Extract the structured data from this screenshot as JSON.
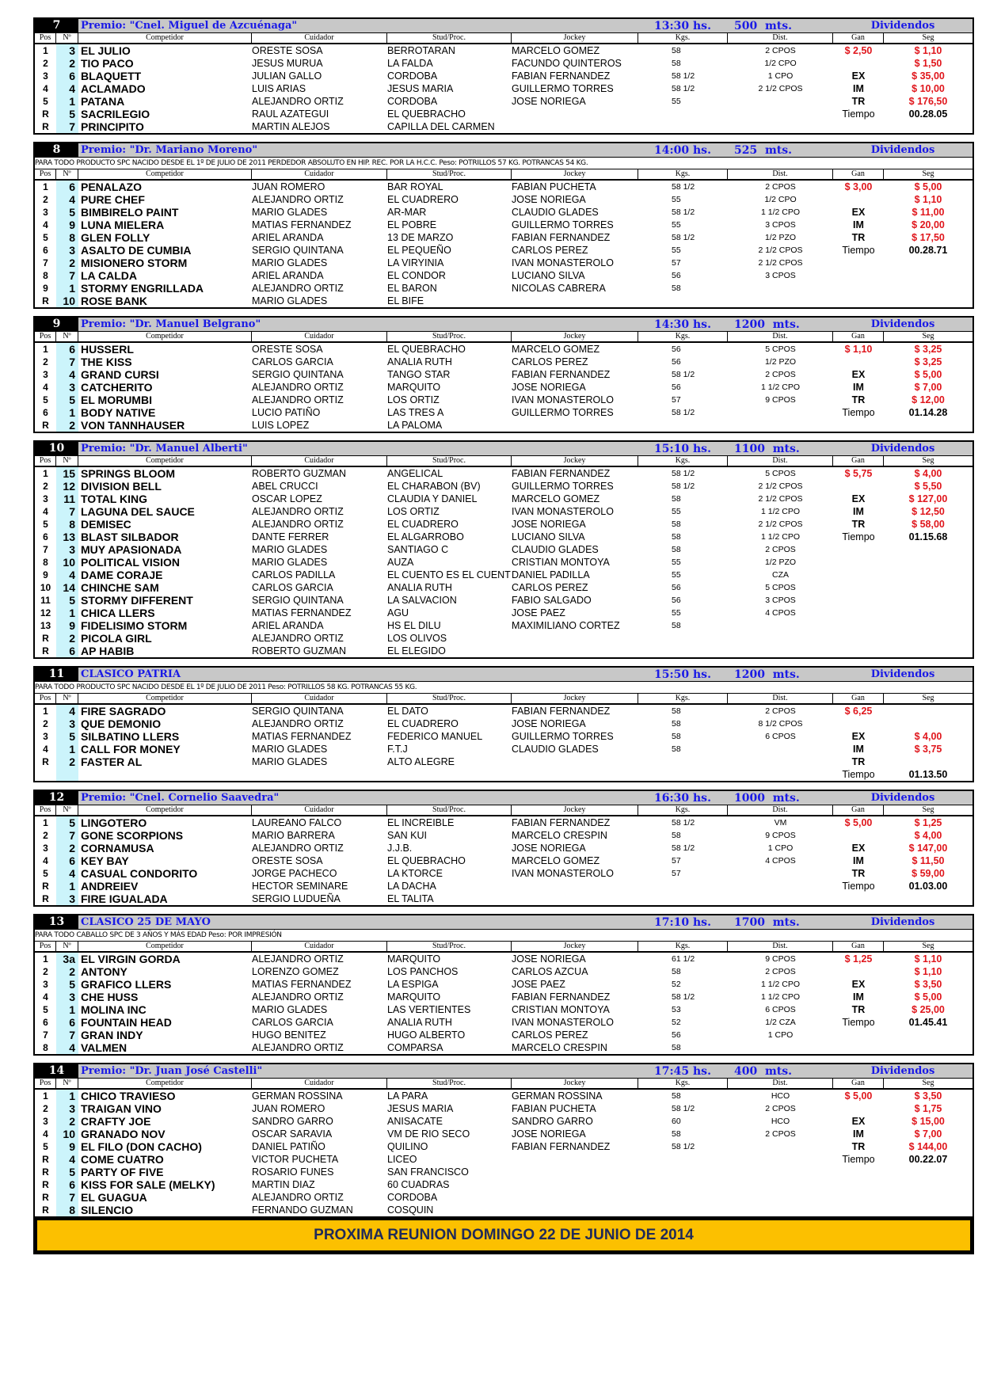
{
  "columns": {
    "pos": "Pos",
    "num": "Nº",
    "name": "Competidor",
    "cuid": "Cuidador",
    "stud": "Stud/Proc.",
    "jockey": "Jockey",
    "kgs": "Kgs.",
    "dist": "Dist.",
    "gan": "Gan",
    "seg": "Seg"
  },
  "dividends_label": "Dividendos",
  "colors": {
    "header_bg": "#c8c8c8",
    "title": "#1a1ae6",
    "money": "#e0161c",
    "number_col": "#ccf4fb",
    "banner": "#fcc000"
  },
  "races": [
    {
      "number": "7",
      "title": "Premio: \"Cnel. Miguel de Azcuénaga\"",
      "time": "13:30 hs.",
      "distance": "500  mts.",
      "note": "",
      "rows": [
        [
          "1",
          "3",
          "EL JULIO",
          "ORESTE SOSA",
          "BERROTARAN",
          "MARCELO GOMEZ",
          "58",
          "2 CPOS",
          "$ 2,50",
          "$ 1,10"
        ],
        [
          "2",
          "2",
          "TIO PACO",
          "JESUS MURUA",
          "LA FALDA",
          "FACUNDO QUINTEROS",
          "58",
          "1/2 CPO",
          "",
          "$ 1,50"
        ],
        [
          "3",
          "6",
          "BLAQUETT",
          "JULIAN GALLO",
          "CORDOBA",
          "FABIAN FERNANDEZ",
          "58 1/2",
          "1 CPO",
          "EX",
          "$ 35,00"
        ],
        [
          "4",
          "4",
          "ACLAMADO",
          "LUIS ARIAS",
          "JESUS MARIA",
          "GUILLERMO TORRES",
          "58 1/2",
          "2 1/2 CPOS",
          "IM",
          "$ 10,00"
        ],
        [
          "5",
          "1",
          "PATANA",
          "ALEJANDRO ORTIZ",
          "CORDOBA",
          "JOSE NORIEGA",
          "55",
          "",
          "TR",
          "$ 176,50"
        ],
        [
          "R",
          "5",
          "SACRILEGIO",
          "RAUL AZATEGUI",
          "EL QUEBRACHO",
          "",
          "",
          "",
          "Tiempo",
          "00.28.05"
        ],
        [
          "R",
          "7",
          "PRINCIPITO",
          "MARTIN ALEJOS",
          "CAPILLA DEL CARMEN",
          "",
          "",
          "",
          "",
          ""
        ]
      ]
    },
    {
      "number": "8",
      "title": "Premio: \"Dr. Mariano Moreno\"",
      "time": "14:00 hs.",
      "distance": "525  mts.",
      "note": "PARA TODO PRODUCTO SPC NACIDO DESDE EL 1º DE JULIO DE 2011 PERDEDOR ABSOLUTO EN HIP. REC. POR LA H.C.C. Peso: POTRILLOS 57 KG. POTRANCAS 54 KG.",
      "rows": [
        [
          "1",
          "6",
          "PENALAZO",
          "JUAN ROMERO",
          "BAR ROYAL",
          "FABIAN PUCHETA",
          "58 1/2",
          "2 CPOS",
          "$ 3,00",
          "$ 5,00"
        ],
        [
          "2",
          "4",
          "PURE CHEF",
          "ALEJANDRO ORTIZ",
          "EL CUADRERO",
          "JOSE NORIEGA",
          "55",
          "1/2 CPO",
          "",
          "$ 1,10"
        ],
        [
          "3",
          "5",
          "BIMBIRELO PAINT",
          "MARIO GLADES",
          "AR-MAR",
          "CLAUDIO GLADES",
          "58 1/2",
          "1 1/2 CPO",
          "EX",
          "$ 11,00"
        ],
        [
          "4",
          "9",
          "LUNA MIELERA",
          "MATIAS FERNANDEZ",
          "EL POBRE",
          "GUILLERMO TORRES",
          "55",
          "3 CPOS",
          "IM",
          "$ 20,00"
        ],
        [
          "5",
          "8",
          "GLEN FOLLY",
          "ARIEL ARANDA",
          "13 DE MARZO",
          "FABIAN FERNANDEZ",
          "58 1/2",
          "1/2 PZO",
          "TR",
          "$ 17,50"
        ],
        [
          "6",
          "3",
          "ASALTO DE CUMBIA",
          "SERGIO QUINTANA",
          "EL PEQUEÑO",
          "CARLOS PEREZ",
          "55",
          "2 1/2 CPOS",
          "Tiempo",
          "00.28.71"
        ],
        [
          "7",
          "2",
          "MISIONERO STORM",
          "MARIO GLADES",
          "LA VIRYINIA",
          "IVAN MONASTEROLO",
          "57",
          "2 1/2 CPOS",
          "",
          ""
        ],
        [
          "8",
          "7",
          "LA CALDA",
          "ARIEL ARANDA",
          "EL CONDOR",
          "LUCIANO SILVA",
          "56",
          "3 CPOS",
          "",
          ""
        ],
        [
          "9",
          "1",
          "STORMY ENGRILLADA",
          "ALEJANDRO ORTIZ",
          "EL BARON",
          "NICOLAS CABRERA",
          "58",
          "",
          "",
          ""
        ],
        [
          "R",
          "10",
          "ROSE BANK",
          "MARIO GLADES",
          "EL BIFE",
          "",
          "",
          "",
          "",
          ""
        ]
      ]
    },
    {
      "number": "9",
      "title": "Premio: \"Dr. Manuel Belgrano\"",
      "time": "14:30 hs.",
      "distance": "1200  mts.",
      "note": "",
      "rows": [
        [
          "1",
          "6",
          "HUSSERL",
          "ORESTE SOSA",
          "EL QUEBRACHO",
          "MARCELO GOMEZ",
          "56",
          "5 CPOS",
          "$ 1,10",
          "$ 3,25"
        ],
        [
          "2",
          "7",
          "THE KISS",
          "CARLOS GARCIA",
          "ANALIA RUTH",
          "CARLOS PEREZ",
          "56",
          "1/2 PZO",
          "",
          "$ 3,25"
        ],
        [
          "3",
          "4",
          "GRAND CURSI",
          "SERGIO QUINTANA",
          "TANGO STAR",
          "FABIAN FERNANDEZ",
          "58 1/2",
          "2 CPOS",
          "EX",
          "$ 5,00"
        ],
        [
          "4",
          "3",
          "CATCHERITO",
          "ALEJANDRO ORTIZ",
          "MARQUITO",
          "JOSE NORIEGA",
          "56",
          "1 1/2 CPO",
          "IM",
          "$ 7,00"
        ],
        [
          "5",
          "5",
          "EL MORUMBI",
          "ALEJANDRO ORTIZ",
          "LOS ORTIZ",
          "IVAN MONASTEROLO",
          "57",
          "9 CPOS",
          "TR",
          "$ 12,00"
        ],
        [
          "6",
          "1",
          "BODY NATIVE",
          "LUCIO PATIÑO",
          "LAS TRES A",
          "GUILLERMO TORRES",
          "58 1/2",
          "",
          "Tiempo",
          "01.14.28"
        ],
        [
          "R",
          "2",
          "VON TANNHAUSER",
          "LUIS LOPEZ",
          "LA PALOMA",
          "",
          "",
          "",
          "",
          ""
        ]
      ]
    },
    {
      "number": "10",
      "title": "Premio: \"Dr. Manuel Alberti\"",
      "time": "15:10 hs.",
      "distance": "1100  mts.",
      "note": "",
      "rows": [
        [
          "1",
          "15",
          "SPRINGS BLOOM",
          "ROBERTO GUZMAN",
          "ANGELICAL",
          "FABIAN FERNANDEZ",
          "58 1/2",
          "5 CPOS",
          "$ 5,75",
          "$ 4,00"
        ],
        [
          "2",
          "12",
          "DIVISION BELL",
          "ABEL CRUCCI",
          "EL CHARABON (BV)",
          "GUILLERMO TORRES",
          "58 1/2",
          "2 1/2 CPOS",
          "",
          "$ 5,50"
        ],
        [
          "3",
          "11",
          "TOTAL KING",
          "OSCAR LOPEZ",
          "CLAUDIA Y DANIEL",
          "MARCELO GOMEZ",
          "58",
          "2 1/2 CPOS",
          "EX",
          "$ 127,00"
        ],
        [
          "4",
          "7",
          "LAGUNA DEL SAUCE",
          "ALEJANDRO ORTIZ",
          "LOS ORTIZ",
          "IVAN MONASTEROLO",
          "55",
          "1 1/2 CPO",
          "IM",
          "$ 12,50"
        ],
        [
          "5",
          "8",
          "DEMISEC",
          "ALEJANDRO ORTIZ",
          "EL CUADRERO",
          "JOSE NORIEGA",
          "58",
          "2 1/2 CPOS",
          "TR",
          "$ 58,00"
        ],
        [
          "6",
          "13",
          "BLAST SILBADOR",
          "DANTE FERRER",
          "EL ALGARROBO",
          "LUCIANO SILVA",
          "58",
          "1 1/2 CPO",
          "Tiempo",
          "01.15.68"
        ],
        [
          "7",
          "3",
          "MUY APASIONADA",
          "MARIO GLADES",
          "SANTIAGO C",
          "CLAUDIO GLADES",
          "58",
          "2 CPOS",
          "",
          ""
        ],
        [
          "8",
          "10",
          "POLITICAL VISION",
          "MARIO GLADES",
          "AUZA",
          "CRISTIAN MONTOYA",
          "55",
          "1/2 PZO",
          "",
          ""
        ],
        [
          "9",
          "4",
          "DAME CORAJE",
          "CARLOS PADILLA",
          "EL CUENTO ES EL CUENT",
          "DANIEL PADILLA",
          "55",
          "CZA",
          "",
          ""
        ],
        [
          "10",
          "14",
          "CHINCHE SAM",
          "CARLOS GARCIA",
          "ANALIA RUTH",
          "CARLOS PEREZ",
          "56",
          "5 CPOS",
          "",
          ""
        ],
        [
          "11",
          "5",
          "STORMY DIFFERENT",
          "SERGIO QUINTANA",
          "LA SALVACION",
          "FABIO SALGADO",
          "56",
          "3 CPOS",
          "",
          ""
        ],
        [
          "12",
          "1",
          "CHICA LLERS",
          "MATIAS FERNANDEZ",
          "AGU",
          "JOSE PAEZ",
          "55",
          "4 CPOS",
          "",
          ""
        ],
        [
          "13",
          "9",
          "FIDELISIMO STORM",
          "ARIEL ARANDA",
          "HS EL DILU",
          "MAXIMILIANO CORTEZ",
          "58",
          "",
          "",
          ""
        ],
        [
          "R",
          "2",
          "PICOLA GIRL",
          "ALEJANDRO ORTIZ",
          "LOS OLIVOS",
          "",
          "",
          "",
          "",
          ""
        ],
        [
          "R",
          "6",
          "AP HABIB",
          "ROBERTO GUZMAN",
          "EL ELEGIDO",
          "",
          "",
          "",
          "",
          ""
        ]
      ]
    },
    {
      "number": "11",
      "title": "CLASICO PATRIA",
      "time": "15:50 hs.",
      "distance": "1200  mts.",
      "note": "PARA TODO PRODUCTO SPC NACIDO DESDE EL 1º DE JULIO DE 2011 Peso: POTRILLOS 58 KG. POTRANCAS 55 KG.",
      "rows": [
        [
          "1",
          "4",
          "FIRE SAGRADO",
          "SERGIO QUINTANA",
          "EL DATO",
          "FABIAN FERNANDEZ",
          "58",
          "2 CPOS",
          "$ 6,25",
          ""
        ],
        [
          "2",
          "3",
          "QUE DEMONIO",
          "ALEJANDRO ORTIZ",
          "EL CUADRERO",
          "JOSE NORIEGA",
          "58",
          "8 1/2 CPOS",
          "",
          ""
        ],
        [
          "3",
          "5",
          "SILBATINO LLERS",
          "MATIAS FERNANDEZ",
          "FEDERICO MANUEL",
          "GUILLERMO TORRES",
          "58",
          "6 CPOS",
          "EX",
          "$ 4,00"
        ],
        [
          "4",
          "1",
          "CALL FOR MONEY",
          "MARIO GLADES",
          "F.T.J",
          "CLAUDIO GLADES",
          "58",
          "",
          "IM",
          "$ 3,75"
        ],
        [
          "R",
          "2",
          "FASTER AL",
          "MARIO GLADES",
          "ALTO ALEGRE",
          "",
          "",
          "",
          "TR",
          ""
        ],
        [
          "",
          "",
          "",
          "",
          "",
          "",
          "",
          "",
          "Tiempo",
          "01.13.50"
        ]
      ]
    },
    {
      "number": "12",
      "title": "Premio: \"Cnel. Cornelio Saavedra\"",
      "time": "16:30 hs.",
      "distance": "1000  mts.",
      "note": "",
      "rows": [
        [
          "1",
          "5",
          "LINGOTERO",
          "LAUREANO FALCO",
          "EL INCREIBLE",
          "FABIAN FERNANDEZ",
          "58 1/2",
          "VM",
          "$ 5,00",
          "$ 1,25"
        ],
        [
          "2",
          "7",
          "GONE SCORPIONS",
          "MARIO BARRERA",
          "SAN KUI",
          "MARCELO CRESPIN",
          "58",
          "9 CPOS",
          "",
          "$ 4,00"
        ],
        [
          "3",
          "2",
          "CORNAMUSA",
          "ALEJANDRO ORTIZ",
          "J.J.B.",
          "JOSE NORIEGA",
          "58 1/2",
          "1 CPO",
          "EX",
          "$ 147,00"
        ],
        [
          "4",
          "6",
          "KEY BAY",
          "ORESTE SOSA",
          "EL QUEBRACHO",
          "MARCELO GOMEZ",
          "57",
          "4 CPOS",
          "IM",
          "$ 11,50"
        ],
        [
          "5",
          "4",
          "CASUAL CONDORITO",
          "JORGE PACHECO",
          "LA KTORCE",
          "IVAN MONASTEROLO",
          "57",
          "",
          "TR",
          "$ 59,00"
        ],
        [
          "R",
          "1",
          "ANDREIEV",
          "HECTOR SEMINARE",
          "LA DACHA",
          "",
          "",
          "",
          "Tiempo",
          "01.03.00"
        ],
        [
          "R",
          "3",
          "FIRE IGUALADA",
          "SERGIO LUDUEÑA",
          "EL TALITA",
          "",
          "",
          "",
          "",
          ""
        ]
      ]
    },
    {
      "number": "13",
      "title": "CLASICO 25 DE MAYO",
      "time": "17:10 hs.",
      "distance": "1700  mts.",
      "note": "PARA TODO CABALLO SPC DE 3 AÑOS Y MÁS EDAD Peso: POR IMPRESIÓN",
      "rows": [
        [
          "1",
          "3a",
          "EL VIRGIN GORDA",
          "ALEJANDRO ORTIZ",
          "MARQUITO",
          "JOSE NORIEGA",
          "61 1/2",
          "9 CPOS",
          "$ 1,25",
          "$ 1,10"
        ],
        [
          "2",
          "2",
          "ANTONY",
          "LORENZO GOMEZ",
          "LOS PANCHOS",
          "CARLOS AZCUA",
          "58",
          "2 CPOS",
          "",
          "$ 1,10"
        ],
        [
          "3",
          "5",
          "GRAFICO LLERS",
          "MATIAS FERNANDEZ",
          "LA ESPIGA",
          "JOSE PAEZ",
          "52",
          "1 1/2 CPO",
          "EX",
          "$ 3,50"
        ],
        [
          "4",
          "3",
          "CHE HUSS",
          "ALEJANDRO ORTIZ",
          "MARQUITO",
          "FABIAN FERNANDEZ",
          "58 1/2",
          "1 1/2 CPO",
          "IM",
          "$ 5,00"
        ],
        [
          "5",
          "1",
          "MOLINA INC",
          "MARIO GLADES",
          "LAS VERTIENTES",
          "CRISTIAN MONTOYA",
          "53",
          "6 CPOS",
          "TR",
          "$ 25,00"
        ],
        [
          "6",
          "6",
          "FOUNTAIN HEAD",
          "CARLOS GARCIA",
          "ANALIA RUTH",
          "IVAN MONASTEROLO",
          "52",
          "1/2 CZA",
          "Tiempo",
          "01.45.41"
        ],
        [
          "7",
          "7",
          "GRAN INDY",
          "HUGO BENITEZ",
          "HUGO ALBERTO",
          "CARLOS PEREZ",
          "56",
          "1 CPO",
          "",
          ""
        ],
        [
          "8",
          "4",
          "VALMEN",
          "ALEJANDRO ORTIZ",
          "COMPARSA",
          "MARCELO CRESPIN",
          "58",
          "",
          "",
          ""
        ]
      ]
    },
    {
      "number": "14",
      "title": "Premio: \"Dr. Juan José Castelli\"",
      "time": "17:45 hs.",
      "distance": "400  mts.",
      "note": "",
      "rows": [
        [
          "1",
          "1",
          "CHICO TRAVIESO",
          "GERMAN ROSSINA",
          "LA PARA",
          "GERMAN ROSSINA",
          "58",
          "HCO",
          "$ 5,00",
          "$ 3,50"
        ],
        [
          "2",
          "3",
          "TRAIGAN VINO",
          "JUAN ROMERO",
          "JESUS MARIA",
          "FABIAN PUCHETA",
          "58 1/2",
          "2 CPOS",
          "",
          "$ 1,75"
        ],
        [
          "3",
          "2",
          "CRAFTY JOE",
          "SANDRO GARRO",
          "ANISACATE",
          "SANDRO GARRO",
          "60",
          "HCO",
          "EX",
          "$ 15,00"
        ],
        [
          "4",
          "10",
          "GRANADO NOV",
          "OSCAR SARAVIA",
          "VM DE RIO SECO",
          "JOSE NORIEGA",
          "58",
          "2 CPOS",
          "IM",
          "$ 7,00"
        ],
        [
          "5",
          "9",
          "EL FILO (DON CACHO)",
          "DANIEL PATIÑO",
          "QUILINO",
          "FABIAN FERNANDEZ",
          "58 1/2",
          "",
          "TR",
          "$ 144,00"
        ],
        [
          "R",
          "4",
          "COME CUATRO",
          "VICTOR PUCHETA",
          "LICEO",
          "",
          "",
          "",
          "Tiempo",
          "00.22.07"
        ],
        [
          "R",
          "5",
          "PARTY OF FIVE",
          "ROSARIO FUNES",
          "SAN FRANCISCO",
          "",
          "",
          "",
          "",
          ""
        ],
        [
          "R",
          "6",
          "KISS FOR SALE (MELKY)",
          "MARTIN DIAZ",
          "60 CUADRAS",
          "",
          "",
          "",
          "",
          ""
        ],
        [
          "R",
          "7",
          "EL GUAGUA",
          "ALEJANDRO ORTIZ",
          "CORDOBA",
          "",
          "",
          "",
          "",
          ""
        ],
        [
          "R",
          "8",
          "SILENCIO",
          "FERNANDO GUZMAN",
          "COSQUIN",
          "",
          "",
          "",
          "",
          ""
        ]
      ]
    }
  ],
  "banner": "PROXIMA REUNION DOMINGO 22 DE JUNIO DE 2014"
}
